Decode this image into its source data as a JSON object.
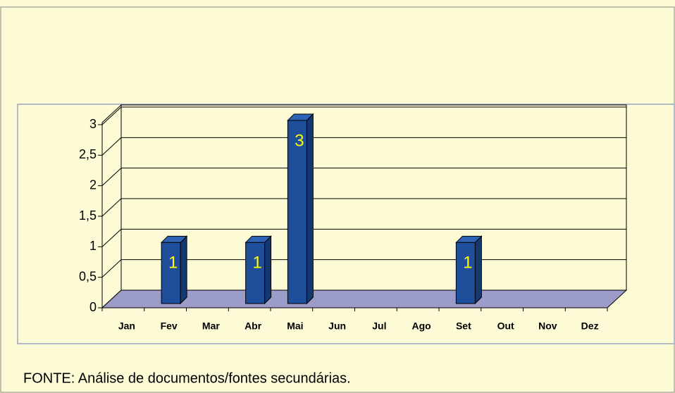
{
  "chart_data": {
    "type": "bar3d",
    "categories": [
      "Jan",
      "Fev",
      "Mar",
      "Abr",
      "Mai",
      "Jun",
      "Jul",
      "Ago",
      "Set",
      "Out",
      "Nov",
      "Dez"
    ],
    "values": [
      null,
      1,
      null,
      1,
      3,
      null,
      null,
      null,
      1,
      null,
      null,
      null
    ],
    "color": "#1f4e9a",
    "label_color": "#ffff00",
    "floor_color": "#9c9cc9",
    "ylim": [
      0,
      3
    ],
    "yticks": [
      0,
      {
        "value": 0.5,
        "label": "0,5"
      },
      1,
      {
        "value": 1.5,
        "label": "1,5"
      },
      2,
      {
        "value": 2.5,
        "label": "2,5"
      },
      3
    ],
    "grid": true,
    "source": "FONTE: Análise de documentos/fontes secundárias."
  }
}
